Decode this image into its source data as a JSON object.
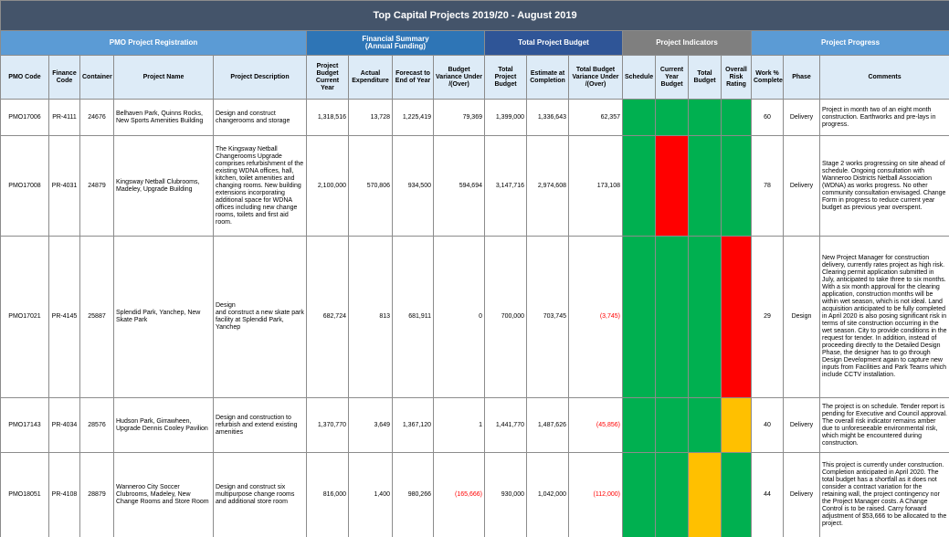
{
  "title": "Top Capital Projects 2019/20 - August 2019",
  "group_headers": [
    {
      "label": "PMO Project Registration",
      "color": "#5b9bd5"
    },
    {
      "label": "Financial Summary\n(Annual Funding)",
      "color": "#2e75b6"
    },
    {
      "label": "Total Project Budget",
      "color": "#2f5597"
    },
    {
      "label": "Project Indicators",
      "color": "#7f7f7f"
    },
    {
      "label": "Project Progress",
      "color": "#5b9bd5"
    }
  ],
  "columns": [
    "PMO Code",
    "Finance Code",
    "Container",
    "Project Name",
    "Project Description",
    "Project Budget Current Year",
    "Actual Expenditure",
    "Forecast to End of Year",
    "Budget Variance Under /(Over)",
    "Total Project Budget",
    "Estimate at Completion",
    "Total Budget Variance Under /(Over)",
    "Schedule",
    "Current Year Budget",
    "Total Budget",
    "Overall Risk Rating",
    "Work % Complete",
    "Phase",
    "Comments"
  ],
  "rows": [
    {
      "cells": [
        "PMO17006",
        "PR-4111",
        "24676",
        "Belhaven Park, Quinns Rocks, New Sports Amenities Building",
        "Design and construct changerooms and storage",
        "1,318,516",
        "13,728",
        "1,225,419",
        "79,369",
        "1,399,000",
        "1,336,643",
        "62,357",
        "60",
        "Delivery",
        "Project in month two of an eight month construction.  Earthworks and pre-lays in progress."
      ],
      "indicators": [
        "#00b050",
        "#00b050",
        "#00b050",
        "#00b050"
      ]
    },
    {
      "cells": [
        "PMO17008",
        "PR-4031",
        "24879",
        "Kingsway Netball Clubrooms, Madeley, Upgrade Building",
        "The Kingsway Netball Changerooms Upgrade comprises refurbishment of the existing WDNA offices, hall, kitchen, toilet amenities and changing rooms.  New building extensions incorporating additional space for WDNA offices including new change rooms, toilets and first aid room.",
        "2,100,000",
        "570,806",
        "934,500",
        "594,694",
        "3,147,716",
        "2,974,608",
        "173,108",
        "78",
        "Delivery",
        "Stage 2 works progressing on site ahead of schedule.  Ongoing consultation with Wanneroo Districts Netball Association (WDNA) as works progress.  No other community consultation envisaged. Change Form in progress to reduce current year budget as previous year overspent."
      ],
      "indicators": [
        "#00b050",
        "#ff0000",
        "#00b050",
        "#00b050"
      ]
    },
    {
      "cells": [
        "PMO17021",
        "PR-4145",
        "25887",
        "Splendid Park, Yanchep, New Skate Park",
        "Design\nand construct a new skate park facility at Splendid Park, Yanchep",
        "682,724",
        "813",
        "681,911",
        "0",
        "700,000",
        "703,745",
        "(3,745)",
        "29",
        "Design",
        "New Project Manager for construction delivery, currently rates project as high risk. Clearing permit application submitted in July, anticipated to take three to six months. With a six month approval for the clearing application, construction months will be within wet season, which is not ideal. Land acquisition anticipated to be fully completed in April 2020 is also posing significant risk in terms of site construction occurring in the wet season.  City to provide conditions in the request for tender. In addition, instead of proceeding directly to the Detailed Design Phase, the designer has to go through Design Development again to capture new inputs from Facilities and Park Teams which include CCTV installation."
      ],
      "indicators": [
        "#00b050",
        "#00b050",
        "#00b050",
        "#ff0000"
      ]
    },
    {
      "cells": [
        "PMO17143",
        "PR-4034",
        "28576",
        "Hudson Park, Girrawheen, Upgrade Dennis Cooley Pavilion",
        "Design and construction to\nrefurbish and extend existing amenities",
        "1,370,770",
        "3,649",
        "1,367,120",
        "1",
        "1,441,770",
        "1,487,626",
        "(45,856)",
        "40",
        "Delivery",
        "The project is on schedule. Tender report is pending for Executive and Council approval. The overall risk indicator remains amber due to unforeseeable environmental risk, which might be encountered during construction."
      ],
      "indicators": [
        "#00b050",
        "#00b050",
        "#00b050",
        "#ffc000"
      ]
    },
    {
      "cells": [
        "PMO18051",
        "PR-4108",
        "28879",
        "Wanneroo City Soccer Clubrooms, Madeley, New Change Rooms and Store Room",
        "Design and construct six multipurpose change rooms and additional store room",
        "816,000",
        "1,400",
        "980,266",
        "(165,666)",
        "930,000",
        "1,042,000",
        "(112,000)",
        "44",
        "Delivery",
        "This project is currently under construction. Completion anticipated in April 2020. The total budget has a shortfall as it does not consider a contract variation for the retaining wall, the project contingency nor the Project Manager costs. A Change Control is to be raised. Carry forward adjustment of $53,666 to be allocated to the project."
      ],
      "indicators": [
        "#00b050",
        "#00b050",
        "#ffc000",
        "#00b050"
      ]
    }
  ]
}
